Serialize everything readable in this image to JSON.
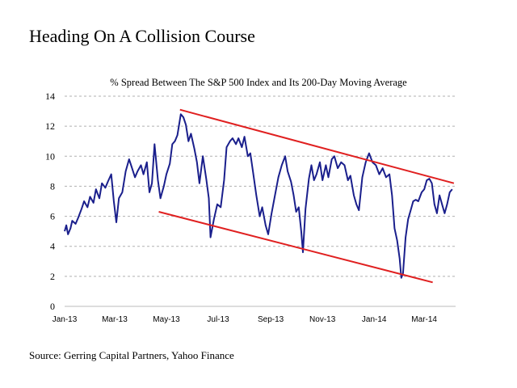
{
  "heading": "Heading On A Collision Course",
  "source": "Source: Gerring Capital Partners, Yahoo Finance",
  "chart_data": {
    "type": "line",
    "title": "% Spread Between The S&P 500 Index and Its 200-Day Moving Average",
    "xlabel": "",
    "ylabel": "",
    "ylim": [
      0,
      14
    ],
    "yticks": [
      "0",
      "2",
      "4",
      "6",
      "8",
      "10",
      "12",
      "14"
    ],
    "xticks": [
      "Jan-13",
      "Mar-13",
      "May-13",
      "Jul-13",
      "Sep-13",
      "Nov-13",
      "Jan-14",
      "Mar-14"
    ],
    "xlim": [
      "2013-01-01",
      "2014-04-07"
    ],
    "grid": "horizontal dashed",
    "colors": {
      "series": "#1a1f8c",
      "trendline": "#e02020",
      "grid": "#b0b0b0"
    },
    "series": [
      {
        "values": [
          [
            "2013-01-01",
            5.0
          ],
          [
            "2013-01-03",
            5.4
          ],
          [
            "2013-01-05",
            4.8
          ],
          [
            "2013-01-08",
            5.2
          ],
          [
            "2013-01-10",
            5.7
          ],
          [
            "2013-01-14",
            5.5
          ],
          [
            "2013-01-17",
            5.9
          ],
          [
            "2013-01-21",
            6.5
          ],
          [
            "2013-01-24",
            7.0
          ],
          [
            "2013-01-28",
            6.6
          ],
          [
            "2013-01-31",
            7.3
          ],
          [
            "2013-02-04",
            6.9
          ],
          [
            "2013-02-07",
            7.8
          ],
          [
            "2013-02-11",
            7.2
          ],
          [
            "2013-02-14",
            8.2
          ],
          [
            "2013-02-18",
            7.9
          ],
          [
            "2013-02-21",
            8.3
          ],
          [
            "2013-02-25",
            8.8
          ],
          [
            "2013-02-28",
            7.0
          ],
          [
            "2013-03-03",
            5.6
          ],
          [
            "2013-03-06",
            7.2
          ],
          [
            "2013-03-10",
            7.6
          ],
          [
            "2013-03-14",
            9.0
          ],
          [
            "2013-03-18",
            9.8
          ],
          [
            "2013-03-21",
            9.3
          ],
          [
            "2013-03-25",
            8.6
          ],
          [
            "2013-03-28",
            9.0
          ],
          [
            "2013-04-01",
            9.4
          ],
          [
            "2013-04-04",
            8.8
          ],
          [
            "2013-04-08",
            9.6
          ],
          [
            "2013-04-11",
            7.6
          ],
          [
            "2013-04-14",
            8.2
          ],
          [
            "2013-04-17",
            10.8
          ],
          [
            "2013-04-21",
            8.4
          ],
          [
            "2013-04-24",
            7.2
          ],
          [
            "2013-04-28",
            8.0
          ],
          [
            "2013-05-01",
            8.8
          ],
          [
            "2013-05-05",
            9.5
          ],
          [
            "2013-05-08",
            10.8
          ],
          [
            "2013-05-11",
            11.0
          ],
          [
            "2013-05-14",
            11.4
          ],
          [
            "2013-05-18",
            12.8
          ],
          [
            "2013-05-21",
            12.6
          ],
          [
            "2013-05-24",
            12.1
          ],
          [
            "2013-05-27",
            11.0
          ],
          [
            "2013-05-30",
            11.5
          ],
          [
            "2013-06-03",
            10.5
          ],
          [
            "2013-06-06",
            9.6
          ],
          [
            "2013-06-09",
            8.2
          ],
          [
            "2013-06-13",
            10.0
          ],
          [
            "2013-06-17",
            8.5
          ],
          [
            "2013-06-20",
            7.2
          ],
          [
            "2013-06-22",
            4.6
          ],
          [
            "2013-06-26",
            5.8
          ],
          [
            "2013-06-30",
            6.8
          ],
          [
            "2013-07-04",
            6.6
          ],
          [
            "2013-07-08",
            8.4
          ],
          [
            "2013-07-11",
            10.6
          ],
          [
            "2013-07-15",
            11.0
          ],
          [
            "2013-07-18",
            11.2
          ],
          [
            "2013-07-22",
            10.8
          ],
          [
            "2013-07-25",
            11.2
          ],
          [
            "2013-07-29",
            10.6
          ],
          [
            "2013-08-01",
            11.3
          ],
          [
            "2013-08-05",
            10.0
          ],
          [
            "2013-08-08",
            10.2
          ],
          [
            "2013-08-11",
            9.0
          ],
          [
            "2013-08-15",
            7.4
          ],
          [
            "2013-08-19",
            6.0
          ],
          [
            "2013-08-22",
            6.6
          ],
          [
            "2013-08-26",
            5.4
          ],
          [
            "2013-08-29",
            4.8
          ],
          [
            "2013-09-02",
            6.2
          ],
          [
            "2013-09-06",
            7.4
          ],
          [
            "2013-09-10",
            8.6
          ],
          [
            "2013-09-14",
            9.4
          ],
          [
            "2013-09-18",
            10.0
          ],
          [
            "2013-09-21",
            9.0
          ],
          [
            "2013-09-25",
            8.3
          ],
          [
            "2013-09-28",
            7.4
          ],
          [
            "2013-10-01",
            6.3
          ],
          [
            "2013-10-04",
            6.6
          ],
          [
            "2013-10-07",
            5.0
          ],
          [
            "2013-10-09",
            3.6
          ],
          [
            "2013-10-12",
            6.5
          ],
          [
            "2013-10-16",
            8.5
          ],
          [
            "2013-10-19",
            9.4
          ],
          [
            "2013-10-22",
            8.4
          ],
          [
            "2013-10-25",
            8.8
          ],
          [
            "2013-10-29",
            9.6
          ],
          [
            "2013-11-01",
            8.4
          ],
          [
            "2013-11-05",
            9.4
          ],
          [
            "2013-11-08",
            8.6
          ],
          [
            "2013-11-12",
            9.8
          ],
          [
            "2013-11-15",
            10.0
          ],
          [
            "2013-11-19",
            9.2
          ],
          [
            "2013-11-23",
            9.6
          ],
          [
            "2013-11-27",
            9.4
          ],
          [
            "2013-12-01",
            8.4
          ],
          [
            "2013-12-04",
            8.7
          ],
          [
            "2013-12-08",
            7.4
          ],
          [
            "2013-12-11",
            6.8
          ],
          [
            "2013-12-14",
            6.4
          ],
          [
            "2013-12-18",
            8.6
          ],
          [
            "2013-12-22",
            9.6
          ],
          [
            "2013-12-26",
            10.2
          ],
          [
            "2013-12-30",
            9.6
          ],
          [
            "2014-01-03",
            9.4
          ],
          [
            "2014-01-07",
            8.8
          ],
          [
            "2014-01-11",
            9.2
          ],
          [
            "2014-01-15",
            8.6
          ],
          [
            "2014-01-19",
            8.8
          ],
          [
            "2014-01-22",
            7.4
          ],
          [
            "2014-01-25",
            5.2
          ],
          [
            "2014-01-28",
            4.4
          ],
          [
            "2014-01-31",
            3.2
          ],
          [
            "2014-02-02",
            1.9
          ],
          [
            "2014-02-04",
            2.2
          ],
          [
            "2014-02-07",
            4.6
          ],
          [
            "2014-02-10",
            5.8
          ],
          [
            "2014-02-13",
            6.4
          ],
          [
            "2014-02-16",
            7.0
          ],
          [
            "2014-02-19",
            7.1
          ],
          [
            "2014-02-22",
            7.0
          ],
          [
            "2014-02-26",
            7.6
          ],
          [
            "2014-03-01",
            7.8
          ],
          [
            "2014-03-04",
            8.4
          ],
          [
            "2014-03-07",
            8.5
          ],
          [
            "2014-03-10",
            8.2
          ],
          [
            "2014-03-13",
            6.8
          ],
          [
            "2014-03-16",
            6.2
          ],
          [
            "2014-03-19",
            7.4
          ],
          [
            "2014-03-22",
            6.8
          ],
          [
            "2014-03-25",
            6.2
          ],
          [
            "2014-03-28",
            6.8
          ],
          [
            "2014-03-31",
            7.6
          ],
          [
            "2014-04-03",
            7.8
          ]
        ]
      }
    ],
    "annotations": [
      {
        "type": "trendline",
        "from": [
          "2013-05-17",
          13.1
        ],
        "to": [
          "2014-04-05",
          8.2
        ]
      },
      {
        "type": "trendline",
        "from": [
          "2013-04-22",
          6.3
        ],
        "to": [
          "2014-03-11",
          1.6
        ]
      }
    ]
  }
}
